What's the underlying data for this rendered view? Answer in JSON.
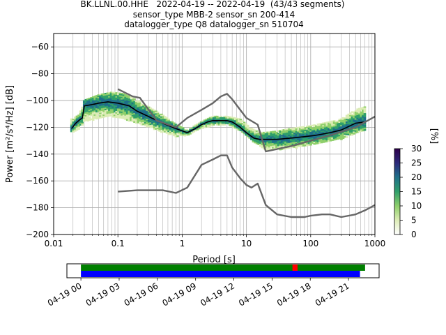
{
  "title": {
    "line1": "BK.LLNL.00.HHE   2022-04-19 -- 2022-04-19  (43/43 segments)",
    "line2": "sensor_type MBB-2 sensor_sn 200-414",
    "line3": "datalogger_type Q8 datalogger_sn 510704"
  },
  "chart_data": [
    {
      "type": "heatmap",
      "xlabel": "Period [s]",
      "ylabel": "Power [m²/s⁴/Hz] [dB]",
      "xscale": "log",
      "xlim": [
        0.01,
        1000
      ],
      "ylim": [
        -200,
        -50
      ],
      "x_ticks": [
        {
          "value": 0.01,
          "label": "0.01"
        },
        {
          "value": 0.1,
          "label": "0.1"
        },
        {
          "value": 1,
          "label": "1"
        },
        {
          "value": 10,
          "label": "10"
        },
        {
          "value": 100,
          "label": "100"
        },
        {
          "value": 1000,
          "label": "1000"
        }
      ],
      "y_ticks": [
        {
          "value": -60,
          "label": "−60"
        },
        {
          "value": -80,
          "label": "−80"
        },
        {
          "value": -100,
          "label": "−100"
        },
        {
          "value": -120,
          "label": "−120"
        },
        {
          "value": -140,
          "label": "−140"
        },
        {
          "value": -160,
          "label": "−160"
        },
        {
          "value": -180,
          "label": "−180"
        },
        {
          "value": -200,
          "label": "−200"
        }
      ],
      "grid": true,
      "colorbar": {
        "label": "[%]",
        "min": 0,
        "max": 30,
        "ticks": [
          {
            "value": 0,
            "label": "0"
          },
          {
            "value": 5,
            "label": "5"
          },
          {
            "value": 10,
            "label": "10"
          },
          {
            "value": 15,
            "label": "15"
          },
          {
            "value": 20,
            "label": "20"
          },
          {
            "value": 25,
            "label": "25"
          },
          {
            "value": 30,
            "label": "30"
          }
        ],
        "colors": [
          "#ffffff",
          "#dcecb5",
          "#8fcf6b",
          "#2f9f6a",
          "#1f6f8a",
          "#2c2a7a",
          "#2d004b"
        ]
      },
      "series": [
        {
          "role": "mean",
          "color": "#000000",
          "x": [
            0.019,
            0.022,
            0.026,
            0.028,
            0.03,
            0.04,
            0.05,
            0.07,
            0.1,
            0.15,
            0.2,
            0.3,
            0.5,
            0.8,
            1.2,
            1.6,
            2,
            2.5,
            3,
            4,
            5,
            6,
            7,
            8,
            10,
            13,
            16,
            20,
            30,
            50,
            80,
            120,
            200,
            300,
            500,
            700
          ],
          "y": [
            -121,
            -117,
            -114,
            -113,
            -104,
            -103,
            -102,
            -101,
            -102,
            -104,
            -108,
            -112,
            -117,
            -121,
            -124,
            -121,
            -118,
            -116,
            -115,
            -115,
            -115,
            -116,
            -118,
            -120,
            -124,
            -128,
            -129,
            -129,
            -129,
            -128,
            -127,
            -126,
            -124,
            -122,
            -117,
            -116
          ]
        },
        {
          "role": "noise-model-high",
          "color": "#666666",
          "x": [
            0.1,
            0.17,
            0.22,
            0.4,
            0.8,
            1.2,
            2,
            3,
            4,
            5,
            6,
            8,
            10,
            15,
            20,
            50,
            100,
            200,
            500,
            1000
          ],
          "y": [
            -91.5,
            -97,
            -98,
            -115,
            -120,
            -113,
            -107,
            -102,
            -97,
            -95,
            -99,
            -107,
            -113,
            -118,
            -138,
            -134,
            -130,
            -126,
            -120,
            -112
          ]
        },
        {
          "role": "noise-model-low",
          "color": "#666666",
          "x": [
            0.1,
            0.2,
            0.5,
            0.8,
            1.2,
            2,
            3,
            4,
            5,
            6,
            8,
            10,
            12,
            15,
            20,
            30,
            50,
            80,
            100,
            150,
            200,
            300,
            500,
            700,
            1000
          ],
          "y": [
            -168,
            -167,
            -167,
            -169,
            -165,
            -148,
            -144,
            -141,
            -141,
            -150,
            -158,
            -163,
            -165,
            -162,
            -178,
            -185,
            -187,
            -187,
            -186,
            -185,
            -185,
            -187,
            -185,
            -182,
            -178
          ]
        }
      ],
      "density_band": {
        "x": [
          0.019,
          0.025,
          0.03,
          0.05,
          0.08,
          0.12,
          0.2,
          0.3,
          0.5,
          0.8,
          1.2,
          2,
          3,
          5,
          8,
          12,
          16,
          20,
          30,
          50,
          100,
          200,
          300,
          500,
          700
        ],
        "lower": [
          -124,
          -122,
          -116,
          -114,
          -112,
          -114,
          -117,
          -120,
          -124,
          -127,
          -126,
          -121,
          -119,
          -118,
          -123,
          -130,
          -134,
          -137,
          -137,
          -136,
          -134,
          -131,
          -129,
          -125,
          -123
        ],
        "upper": [
          -114,
          -111,
          -100,
          -96,
          -94,
          -95,
          -100,
          -105,
          -111,
          -118,
          -122,
          -116,
          -112,
          -112,
          -114,
          -121,
          -124,
          -124,
          -123,
          -121,
          -119,
          -116,
          -114,
          -107,
          -105
        ]
      }
    },
    {
      "type": "timeline",
      "x_ticks": [
        {
          "value": 0,
          "label": "04-19 00"
        },
        {
          "value": 3,
          "label": "04-19 03"
        },
        {
          "value": 6,
          "label": "04-19 06"
        },
        {
          "value": 9,
          "label": "04-19 09"
        },
        {
          "value": 12,
          "label": "04-19 12"
        },
        {
          "value": 15,
          "label": "04-19 15"
        },
        {
          "value": 18,
          "label": "04-19 18"
        },
        {
          "value": 21,
          "label": "04-19 21"
        }
      ],
      "xlim": [
        -1.1,
        23.4
      ],
      "rows": [
        {
          "color": "#008000",
          "start": 0,
          "end": 22.3
        },
        {
          "color": "#0000ff",
          "start": 0,
          "end": 21.9
        }
      ],
      "gaps": [
        {
          "color": "#ff0000",
          "start": 16.6,
          "end": 17.0
        }
      ]
    }
  ]
}
